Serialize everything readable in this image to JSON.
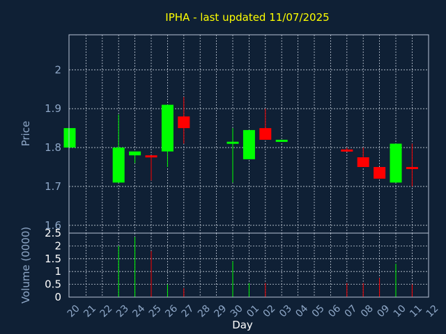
{
  "chart_data": {
    "type": "candlestick",
    "title": "IPHA - last updated 11/07/2025",
    "xlabel": "Day",
    "price_ylabel": "Price",
    "volume_ylabel": "Volume (0000)",
    "price_yticks": [
      "1.6",
      "1.7",
      "1.8",
      "1.9",
      "2"
    ],
    "price_ylim": [
      1.58,
      2.09
    ],
    "volume_yticks": [
      "0",
      "0.5",
      "1",
      "1.5",
      "2",
      "2.5"
    ],
    "volume_ylim": [
      0,
      2.5
    ],
    "grid": true,
    "x_labels": [
      "20",
      "21",
      "22",
      "23",
      "24",
      "25",
      "26",
      "27",
      "28",
      "29",
      "30",
      "01",
      "02",
      "03",
      "04",
      "05",
      "06",
      "07",
      "08",
      "09",
      "10",
      "11",
      "12"
    ],
    "candles": [
      {
        "idx": 0,
        "open": 1.8,
        "close": 1.85,
        "high": 1.85,
        "low": 1.8,
        "volume": 0
      },
      {
        "idx": 3,
        "open": 1.71,
        "close": 1.8,
        "high": 1.885,
        "low": 1.71,
        "volume": 2.0
      },
      {
        "idx": 4,
        "open": 1.78,
        "close": 1.79,
        "high": 1.79,
        "low": 1.76,
        "volume": 2.35
      },
      {
        "idx": 5,
        "open": 1.78,
        "close": 1.775,
        "high": 1.78,
        "low": 1.715,
        "volume": 1.8
      },
      {
        "idx": 6,
        "open": 1.79,
        "close": 1.91,
        "high": 1.91,
        "low": 1.75,
        "volume": 0.5
      },
      {
        "idx": 7,
        "open": 1.88,
        "close": 1.85,
        "high": 1.93,
        "low": 1.81,
        "volume": 0.35
      },
      {
        "idx": 10,
        "open": 1.81,
        "close": 1.815,
        "high": 1.85,
        "low": 1.71,
        "volume": 1.4
      },
      {
        "idx": 11,
        "open": 1.77,
        "close": 1.845,
        "high": 1.845,
        "low": 1.77,
        "volume": 0.55
      },
      {
        "idx": 12,
        "open": 1.85,
        "close": 1.82,
        "high": 1.9,
        "low": 1.82,
        "volume": 0.55
      },
      {
        "idx": 13,
        "open": 1.815,
        "close": 1.82,
        "high": 1.82,
        "low": 1.815,
        "volume": 0
      },
      {
        "idx": 17,
        "open": 1.795,
        "close": 1.79,
        "high": 1.8,
        "low": 1.79,
        "volume": 0.55
      },
      {
        "idx": 18,
        "open": 1.775,
        "close": 1.75,
        "high": 1.8,
        "low": 1.75,
        "volume": 0.55
      },
      {
        "idx": 19,
        "open": 1.75,
        "close": 1.72,
        "high": 1.75,
        "low": 1.72,
        "volume": 0.75
      },
      {
        "idx": 20,
        "open": 1.71,
        "close": 1.81,
        "high": 1.81,
        "low": 1.71,
        "volume": 1.3
      },
      {
        "idx": 21,
        "open": 1.75,
        "close": 1.745,
        "high": 1.81,
        "low": 1.7,
        "volume": 0.5
      }
    ],
    "colors": {
      "background": "#0f2035",
      "axis": "#b8c4d6",
      "grid": "#c7cfdc",
      "up": "#00ff00",
      "down": "#ff0000",
      "title": "#ffff00",
      "label": "#8fa8c8",
      "tick": "#ffffff"
    }
  }
}
